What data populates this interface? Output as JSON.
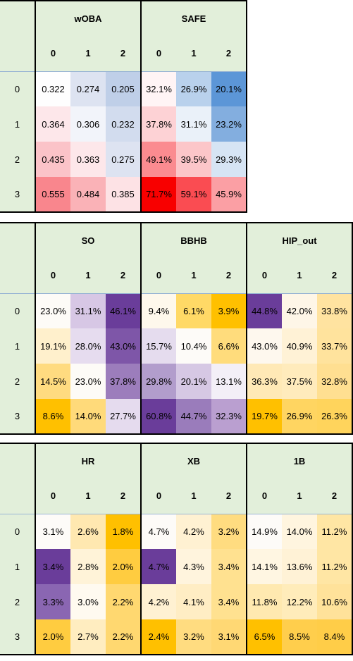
{
  "column_labels": [
    "0",
    "1",
    "2"
  ],
  "row_labels": [
    "0",
    "1",
    "2",
    "3"
  ],
  "tables": [
    {
      "groups": [
        {
          "title": "wOBA",
          "values": [
            [
              "0.322",
              "0.274",
              "0.205"
            ],
            [
              "0.364",
              "0.306",
              "0.232"
            ],
            [
              "0.435",
              "0.363",
              "0.275"
            ],
            [
              "0.555",
              "0.484",
              "0.385"
            ]
          ],
          "colors": [
            [
              "#fefefe",
              "#dde3f1",
              "#bfcfe8"
            ],
            [
              "#fde7ea",
              "#f2f4fa",
              "#d2dcee"
            ],
            [
              "#fbc3c8",
              "#fde7ea",
              "#dde3f1"
            ],
            [
              "#f9868d",
              "#fab2b7",
              "#fde2e5"
            ]
          ]
        },
        {
          "title": "SAFE",
          "values": [
            [
              "32.1%",
              "26.9%",
              "20.1%"
            ],
            [
              "37.8%",
              "31.1%",
              "23.2%"
            ],
            [
              "49.1%",
              "39.5%",
              "29.3%"
            ],
            [
              "71.7%",
              "59.1%",
              "45.9%"
            ]
          ],
          "colors": [
            [
              "#fff4f5",
              "#b9d1ec",
              "#5c96d7"
            ],
            [
              "#fdd2d5",
              "#eaf1f9",
              "#83aedf"
            ],
            [
              "#fb8b90",
              "#fcc6c9",
              "#d6e4f4"
            ],
            [
              "#f80000",
              "#fa4c52",
              "#fb9fa4"
            ]
          ]
        }
      ]
    },
    {
      "groups": [
        {
          "title": "SO",
          "values": [
            [
              "23.0%",
              "31.1%",
              "46.1%"
            ],
            [
              "19.1%",
              "28.0%",
              "43.0%"
            ],
            [
              "14.5%",
              "23.0%",
              "37.8%"
            ],
            [
              "8.6%",
              "14.0%",
              "27.7%"
            ]
          ],
          "colors": [
            [
              "#fdfbf7",
              "#d7c7e5",
              "#6a3d9a"
            ],
            [
              "#fff0cc",
              "#e6dcef",
              "#7e56a8"
            ],
            [
              "#ffdb80",
              "#fdfbf7",
              "#9c7dbc"
            ],
            [
              "#ffc000",
              "#ffda7a",
              "#e5dbee"
            ]
          ]
        },
        {
          "title": "BBHB",
          "values": [
            [
              "9.4%",
              "6.1%",
              "3.9%"
            ],
            [
              "15.7%",
              "10.4%",
              "6.6%"
            ],
            [
              "29.8%",
              "20.1%",
              "13.1%"
            ],
            [
              "60.8%",
              "44.7%",
              "32.3%"
            ]
          ],
          "colors": [
            [
              "#fef8ec",
              "#ffd966",
              "#ffc000"
            ],
            [
              "#e5dcee",
              "#fdfbf8",
              "#ffdc7c"
            ],
            [
              "#b29dcc",
              "#d6c8e4",
              "#f3eff7"
            ],
            [
              "#6a3d9a",
              "#9a7cbb",
              "#ba9fd0"
            ]
          ]
        },
        {
          "title": "HIP_out",
          "values": [
            [
              "44.8%",
              "42.0%",
              "33.8%"
            ],
            [
              "43.0%",
              "40.9%",
              "33.7%"
            ],
            [
              "36.3%",
              "37.5%",
              "32.8%"
            ],
            [
              "19.7%",
              "26.9%",
              "26.3%"
            ]
          ],
          "colors": [
            [
              "#6a3d9a",
              "#fef6e7",
              "#ffe3a0"
            ],
            [
              "#fef8ee",
              "#fff2d6",
              "#ffe39d"
            ],
            [
              "#ffe9b6",
              "#ffebbc",
              "#ffdf91"
            ],
            [
              "#ffc000",
              "#ffd561",
              "#ffd45c"
            ]
          ]
        }
      ]
    },
    {
      "groups": [
        {
          "title": "HR",
          "values": [
            [
              "3.1%",
              "2.6%",
              "1.8%"
            ],
            [
              "3.4%",
              "2.8%",
              "2.0%"
            ],
            [
              "3.3%",
              "3.0%",
              "2.2%"
            ],
            [
              "2.0%",
              "2.7%",
              "2.2%"
            ]
          ],
          "colors": [
            [
              "#fdfbf8",
              "#ffe8b0",
              "#ffc000"
            ],
            [
              "#6a3d9a",
              "#fff3d8",
              "#ffcc40"
            ],
            [
              "#8a66b2",
              "#fffaf0",
              "#ffd870"
            ],
            [
              "#ffcc40",
              "#ffedc0",
              "#ffd870"
            ]
          ]
        },
        {
          "title": "XB",
          "values": [
            [
              "4.7%",
              "4.2%",
              "3.2%"
            ],
            [
              "4.7%",
              "4.3%",
              "3.4%"
            ],
            [
              "4.2%",
              "4.1%",
              "3.4%"
            ],
            [
              "2.4%",
              "3.2%",
              "3.1%"
            ]
          ],
          "colors": [
            [
              "#fdfbf8",
              "#fff1d2",
              "#ffdc80"
            ],
            [
              "#6a3d9a",
              "#fff4dd",
              "#ffe190"
            ],
            [
              "#fff1d2",
              "#ffedc4",
              "#ffe190"
            ],
            [
              "#ffc000",
              "#ffdc80",
              "#ffd874"
            ]
          ]
        },
        {
          "title": "1B",
          "values": [
            [
              "14.9%",
              "14.0%",
              "11.2%"
            ],
            [
              "14.1%",
              "13.6%",
              "11.2%"
            ],
            [
              "11.8%",
              "12.2%",
              "10.6%"
            ],
            [
              "6.5%",
              "8.5%",
              "8.4%"
            ]
          ],
          "colors": [
            [
              "#fdfbf8",
              "#fff5df",
              "#ffe6a4"
            ],
            [
              "#fff6e2",
              "#fff2d6",
              "#ffe6a4"
            ],
            [
              "#ffe9b0",
              "#ffecba",
              "#ffe29a"
            ],
            [
              "#ffc000",
              "#ffce4c",
              "#ffcd48"
            ]
          ]
        }
      ]
    }
  ]
}
